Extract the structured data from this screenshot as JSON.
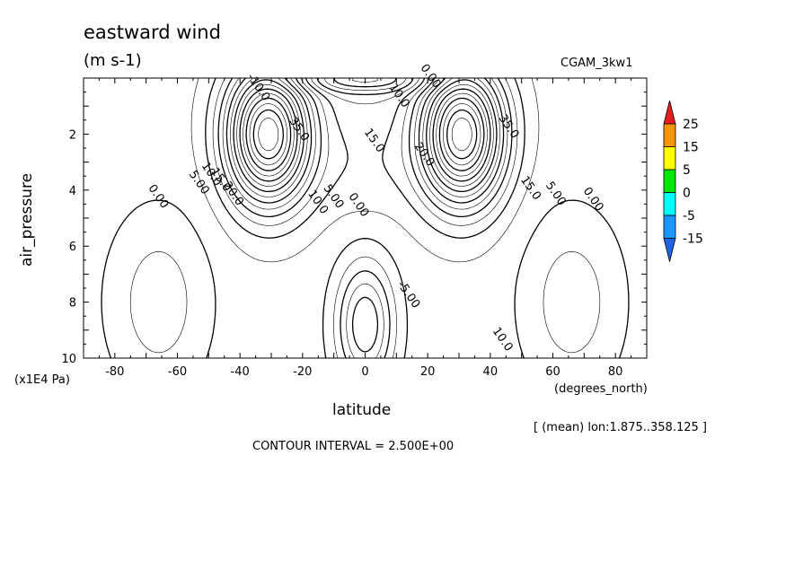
{
  "chart_data": {
    "type": "heatmap",
    "title": "eastward wind",
    "units": "(m s-1)",
    "run_label": "CGAM_3kw1",
    "xlabel": "latitude",
    "x_units": "(degrees_north)",
    "ylabel": "air_pressure",
    "y_units": "(x1E4 Pa)",
    "xlim": [
      -90,
      90
    ],
    "ylim": [
      10,
      0
    ],
    "x_ticks": [
      "-80",
      "-60",
      "-40",
      "-20",
      "0",
      "20",
      "40",
      "60",
      "80"
    ],
    "x_tick_values": [
      -80,
      -60,
      -40,
      -20,
      0,
      20,
      40,
      60,
      80
    ],
    "y_ticks": [
      "2",
      "4",
      "6",
      "8",
      "10"
    ],
    "y_tick_values": [
      2,
      4,
      6,
      8,
      10
    ],
    "footnote": "[ (mean) lon:1.875..358.125 ]",
    "contour_interval_text": "CONTOUR INTERVAL = 2.500E+00",
    "contour_interval": 2.5,
    "colorbar": {
      "labels": [
        "25",
        "15",
        "5",
        "0",
        "-5",
        "-15"
      ],
      "colors": [
        "#e61e1e",
        "#f5960a",
        "#ffff00",
        "#00e600",
        "#00ffff",
        "#1e96ff",
        "#1e64e6"
      ]
    },
    "contour_labels": [
      {
        "text": "0.00",
        "lat": -67,
        "p": 4.3
      },
      {
        "text": "5.00",
        "lat": -54,
        "p": 3.8
      },
      {
        "text": "10.0",
        "lat": -50,
        "p": 3.5
      },
      {
        "text": "15.0",
        "lat": -47,
        "p": 3.7
      },
      {
        "text": "20.0",
        "lat": -43,
        "p": 4.2
      },
      {
        "text": "35.0",
        "lat": -22,
        "p": 1.9
      },
      {
        "text": "15.0",
        "lat": 2,
        "p": 2.3
      },
      {
        "text": "10.0",
        "lat": -16,
        "p": 4.5
      },
      {
        "text": "5.00",
        "lat": -11,
        "p": 4.3
      },
      {
        "text": "0.00",
        "lat": -3,
        "p": 4.6
      },
      {
        "text": "-5.00",
        "lat": 13,
        "p": 7.8
      },
      {
        "text": "20.0",
        "lat": 18,
        "p": 2.8
      },
      {
        "text": "35.0",
        "lat": 45,
        "p": 1.8
      },
      {
        "text": "15.0",
        "lat": 52,
        "p": 4.0
      },
      {
        "text": "5.00",
        "lat": 60,
        "p": 4.2
      },
      {
        "text": "0.00",
        "lat": 72,
        "p": 4.4
      },
      {
        "text": "10.0",
        "lat": 43,
        "p": 9.4
      },
      {
        "text": "0.00",
        "lat": 20,
        "p": 0.0
      },
      {
        "text": "10.0",
        "lat": 10,
        "p": 0.7
      },
      {
        "text": "-10.0",
        "lat": -35,
        "p": 0.4
      }
    ]
  }
}
